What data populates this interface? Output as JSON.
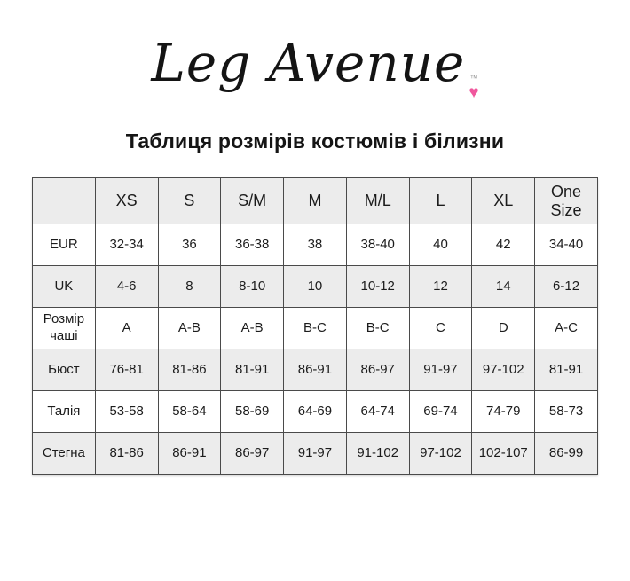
{
  "brand": {
    "name": "Leg Avenue",
    "trademark": "™",
    "heart_icon": "♥",
    "heart_color": "#f0579d"
  },
  "title": "Таблиця розмірів костюмів і білизни",
  "size_table": {
    "columns": [
      "",
      "XS",
      "S",
      "S/M",
      "M",
      "M/L",
      "L",
      "XL",
      "One Size"
    ],
    "rows": [
      {
        "label": "EUR",
        "values": [
          "32-34",
          "36",
          "36-38",
          "38",
          "38-40",
          "40",
          "42",
          "34-40"
        ]
      },
      {
        "label": "UK",
        "values": [
          "4-6",
          "8",
          "8-10",
          "10",
          "10-12",
          "12",
          "14",
          "6-12"
        ]
      },
      {
        "label": "Розмір чаші",
        "values": [
          "A",
          "A-B",
          "A-B",
          "B-C",
          "B-C",
          "C",
          "D",
          "A-C"
        ]
      },
      {
        "label": "Бюст",
        "values": [
          "76-81",
          "81-86",
          "81-91",
          "86-91",
          "86-97",
          "91-97",
          "97-102",
          "81-91"
        ]
      },
      {
        "label": "Талія",
        "values": [
          "53-58",
          "58-64",
          "58-69",
          "64-69",
          "64-74",
          "69-74",
          "74-79",
          "58-73"
        ]
      },
      {
        "label": "Стегна",
        "values": [
          "81-86",
          "86-91",
          "86-97",
          "91-97",
          "91-102",
          "97-102",
          "102-107",
          "86-99"
        ]
      }
    ],
    "colors": {
      "stripe_bg": "#ececec",
      "border": "#4a4a4a",
      "text": "#1c1c1c"
    }
  }
}
